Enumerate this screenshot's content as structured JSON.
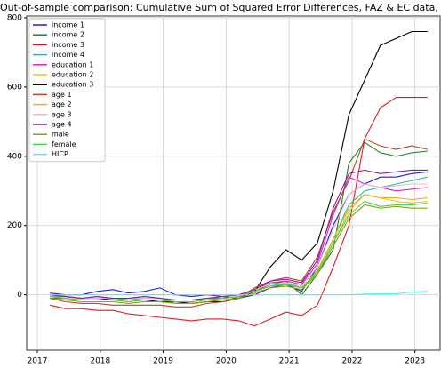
{
  "chart_data": {
    "type": "line",
    "title": "Out-of-sample comparison: Cumulative Sum of Squared Error Differences, FAZ & EC data, h = 1",
    "x": [
      2017.2,
      2017.45,
      2017.7,
      2017.95,
      2018.2,
      2018.45,
      2018.7,
      2018.95,
      2019.2,
      2019.45,
      2019.7,
      2019.95,
      2020.2,
      2020.45,
      2020.7,
      2020.95,
      2021.2,
      2021.45,
      2021.7,
      2021.95,
      2022.2,
      2022.45,
      2022.7,
      2022.95,
      2023.2
    ],
    "xlim": [
      2016.83,
      2023.4
    ],
    "xticks": [
      2017,
      2018,
      2019,
      2020,
      2021,
      2022,
      2023
    ],
    "ylim": [
      -160,
      805
    ],
    "yticks": [
      0,
      200,
      400,
      600,
      800
    ],
    "grid": true,
    "legend": "upper left",
    "series": [
      {
        "name": "income 1",
        "color": "#1f1fd6",
        "values": [
          5,
          0,
          0,
          10,
          15,
          5,
          10,
          20,
          0,
          -5,
          0,
          -5,
          -10,
          0,
          20,
          30,
          10,
          80,
          200,
          290,
          320,
          340,
          340,
          350,
          355
        ]
      },
      {
        "name": "income 2",
        "color": "#1a8a1a",
        "values": [
          -10,
          -10,
          -15,
          -15,
          -15,
          -20,
          -15,
          -15,
          -25,
          -25,
          -20,
          -15,
          -10,
          10,
          30,
          40,
          0,
          60,
          130,
          380,
          440,
          410,
          400,
          410,
          415
        ]
      },
      {
        "name": "income 3",
        "color": "#e01b1b",
        "values": [
          -30,
          -40,
          -40,
          -45,
          -45,
          -55,
          -60,
          -65,
          -70,
          -75,
          -70,
          -70,
          -75,
          -90,
          -70,
          -50,
          -60,
          -30,
          80,
          200,
          450,
          540,
          570,
          570,
          570
        ]
      },
      {
        "name": "income 4",
        "color": "#1fbfbf",
        "values": [
          -5,
          -5,
          -10,
          -10,
          -10,
          -15,
          -10,
          -10,
          -15,
          -15,
          -10,
          -10,
          -5,
          10,
          25,
          35,
          20,
          70,
          160,
          260,
          300,
          310,
          320,
          330,
          340
        ]
      },
      {
        "name": "education 1",
        "color": "#d91fd9",
        "values": [
          0,
          -5,
          -10,
          -5,
          -10,
          -10,
          -5,
          -10,
          -15,
          -15,
          -10,
          -10,
          -5,
          15,
          35,
          40,
          30,
          90,
          230,
          340,
          320,
          310,
          300,
          305,
          310
        ]
      },
      {
        "name": "education 2",
        "color": "#e8c21a",
        "values": [
          -5,
          -10,
          -15,
          -15,
          -15,
          -20,
          -15,
          -15,
          -20,
          -20,
          -15,
          -10,
          -5,
          10,
          25,
          30,
          20,
          60,
          150,
          240,
          290,
          280,
          270,
          265,
          270
        ]
      },
      {
        "name": "education 3",
        "color": "#000000",
        "values": [
          0,
          -5,
          -10,
          -10,
          -15,
          -15,
          -15,
          -20,
          -20,
          -25,
          -20,
          -20,
          -10,
          10,
          80,
          130,
          100,
          150,
          300,
          520,
          620,
          720,
          740,
          760,
          760
        ]
      },
      {
        "name": "age 1",
        "color": "#b5472a",
        "values": [
          -10,
          -20,
          -25,
          -25,
          -30,
          -30,
          -30,
          -30,
          -35,
          -35,
          -25,
          -20,
          -10,
          20,
          40,
          50,
          40,
          110,
          240,
          330,
          450,
          430,
          420,
          430,
          420
        ]
      },
      {
        "name": "age 2",
        "color": "#f5a623",
        "values": [
          -5,
          -10,
          -15,
          -15,
          -15,
          -20,
          -15,
          -15,
          -20,
          -20,
          -15,
          -10,
          -5,
          10,
          25,
          30,
          20,
          70,
          160,
          250,
          290,
          280,
          280,
          275,
          280
        ]
      },
      {
        "name": "age 3",
        "color": "#f2b6c6",
        "values": [
          0,
          -5,
          -10,
          -10,
          -10,
          -10,
          -10,
          -10,
          -15,
          -15,
          -10,
          -5,
          0,
          15,
          30,
          35,
          25,
          80,
          190,
          290,
          320,
          310,
          315,
          320,
          320
        ]
      },
      {
        "name": "age 4",
        "color": "#8b1a9b",
        "values": [
          0,
          -5,
          -10,
          -5,
          -10,
          -10,
          -5,
          -10,
          -15,
          -15,
          -10,
          -5,
          0,
          15,
          40,
          45,
          35,
          100,
          250,
          350,
          360,
          350,
          355,
          360,
          360
        ]
      },
      {
        "name": "male",
        "color": "#9a9a1a",
        "values": [
          -10,
          -15,
          -20,
          -20,
          -20,
          -25,
          -20,
          -20,
          -25,
          -25,
          -20,
          -15,
          -10,
          5,
          20,
          25,
          15,
          60,
          140,
          220,
          260,
          250,
          255,
          250,
          250
        ]
      },
      {
        "name": "female",
        "color": "#3fdc3f",
        "values": [
          -5,
          -10,
          -15,
          -15,
          -15,
          -20,
          -15,
          -15,
          -20,
          -20,
          -15,
          -10,
          -5,
          10,
          25,
          30,
          20,
          65,
          150,
          230,
          270,
          255,
          260,
          260,
          265
        ]
      },
      {
        "name": "HICP",
        "color": "#3ff2f2",
        "values": [
          0,
          0,
          0,
          0,
          0,
          0,
          0,
          0,
          0,
          0,
          0,
          0,
          0,
          0,
          0,
          0,
          0,
          0,
          0,
          0,
          2,
          3,
          3,
          8,
          10
        ]
      }
    ]
  }
}
